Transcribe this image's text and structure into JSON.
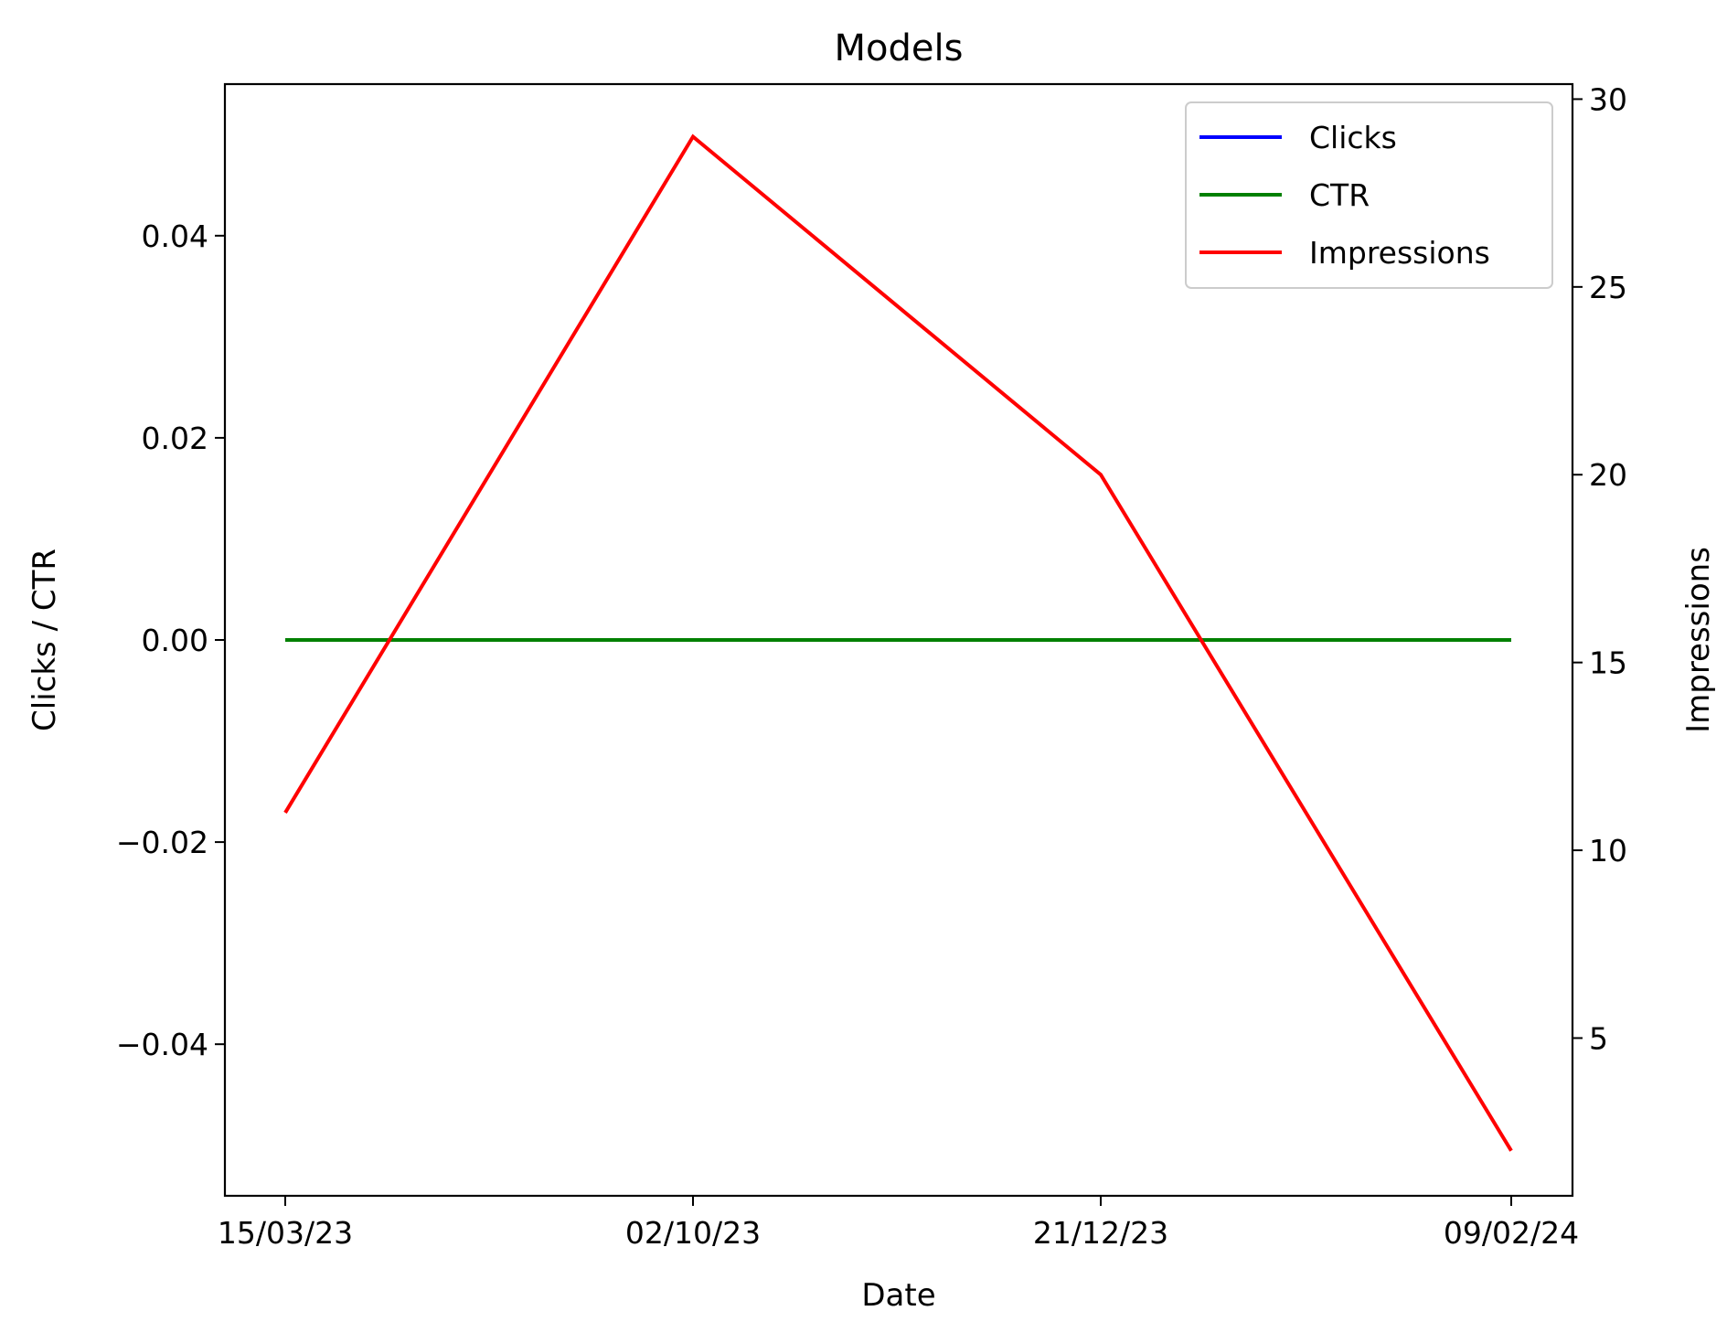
{
  "chart_data": {
    "type": "line",
    "title": "Models",
    "xlabel": "Date",
    "ylabel_left": "Clicks / CTR",
    "ylabel_right": "Impressions",
    "x": [
      "15/03/23",
      "02/10/23",
      "21/12/23",
      "09/02/24"
    ],
    "left_axis": {
      "ylim": [
        -0.055,
        0.055
      ],
      "ticks": [
        0.04,
        0.02,
        0.0,
        -0.02,
        -0.04
      ],
      "tick_labels": [
        "0.04",
        "0.02",
        "0.00",
        "−0.02",
        "−0.04"
      ]
    },
    "right_axis": {
      "ylim": [
        0.8,
        30.4
      ],
      "ticks": [
        5,
        10,
        15,
        20,
        25,
        30
      ],
      "tick_labels": [
        "5",
        "10",
        "15",
        "20",
        "25",
        "30"
      ]
    },
    "series": [
      {
        "name": "Clicks",
        "axis": "left",
        "color": "#0000ff",
        "values": [
          0,
          0,
          0,
          0
        ]
      },
      {
        "name": "CTR",
        "axis": "left",
        "color": "#008000",
        "values": [
          0,
          0,
          0,
          0
        ]
      },
      {
        "name": "Impressions",
        "axis": "right",
        "color": "#ff0000",
        "values": [
          11,
          29,
          20,
          2
        ]
      }
    ],
    "legend": {
      "position": "upper right",
      "entries": [
        "Clicks",
        "CTR",
        "Impressions"
      ]
    },
    "grid": false
  }
}
